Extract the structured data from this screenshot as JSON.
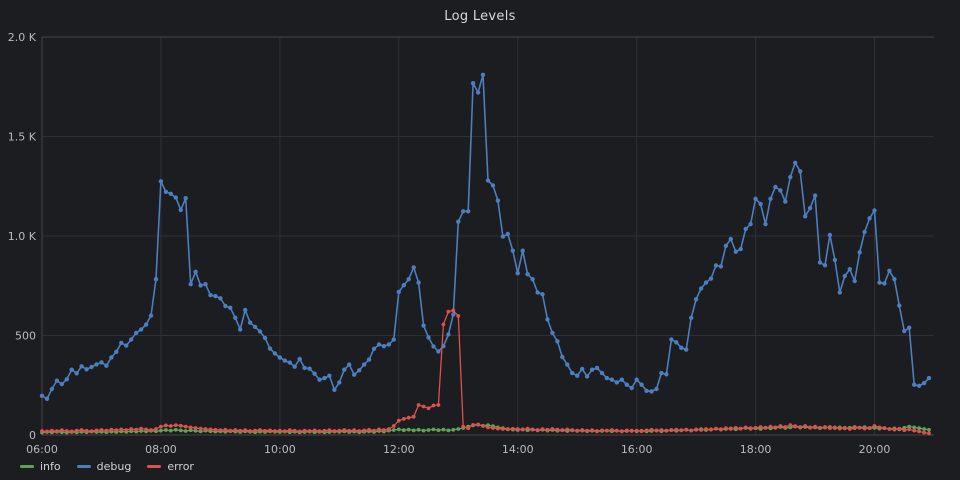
{
  "chart_data": {
    "type": "line",
    "title": "Log Levels",
    "xlabel": "",
    "ylabel": "",
    "x_start": "06:00",
    "x_end": "21:00",
    "x_interval_minutes": 5,
    "x_axis_total_intervals": 180,
    "x_tick_labels": [
      "06:00",
      "08:00",
      "10:00",
      "12:00",
      "14:00",
      "16:00",
      "18:00",
      "20:00"
    ],
    "x_tick_interval_hours": 2,
    "ylim": [
      0,
      2000
    ],
    "y_ticks": [
      {
        "value": 0,
        "label": "0"
      },
      {
        "value": 500,
        "label": "500"
      },
      {
        "value": 1000,
        "label": "1.0 K"
      },
      {
        "value": 1500,
        "label": "1.5 K"
      },
      {
        "value": 2000,
        "label": "2.0 K"
      }
    ],
    "grid": true,
    "legend_position": "bottom-left",
    "marker_style": "dots-with-line",
    "series": [
      {
        "name": "info",
        "color": "#61a356",
        "values": [
          12,
          15,
          13,
          16,
          14,
          12,
          15,
          13,
          16,
          14,
          17,
          15,
          16,
          14,
          17,
          15,
          18,
          16,
          19,
          17,
          20,
          18,
          21,
          19,
          22,
          25,
          22,
          26,
          23,
          20,
          24,
          21,
          18,
          22,
          19,
          17,
          18,
          16,
          19,
          17,
          15,
          18,
          16,
          14,
          17,
          15,
          18,
          16,
          15,
          17,
          14,
          16,
          13,
          15,
          17,
          14,
          16,
          13,
          15,
          17,
          16,
          18,
          15,
          17,
          14,
          16,
          18,
          15,
          20,
          17,
          22,
          25,
          28,
          24,
          27,
          23,
          26,
          22,
          25,
          28,
          24,
          27,
          23,
          26,
          30,
          35,
          42,
          48,
          52,
          46,
          50,
          44,
          38,
          34,
          30,
          27,
          25,
          28,
          24,
          27,
          23,
          26,
          22,
          25,
          21,
          24,
          20,
          23,
          20,
          22,
          19,
          21,
          18,
          20,
          22,
          19,
          21,
          18,
          20,
          22,
          19,
          21,
          18,
          20,
          23,
          19,
          22,
          25,
          21,
          24,
          27,
          23,
          26,
          29,
          25,
          28,
          31,
          27,
          30,
          33,
          29,
          32,
          35,
          31,
          34,
          30,
          37,
          33,
          36,
          40,
          35,
          38,
          42,
          37,
          40,
          36,
          38,
          34,
          37,
          40,
          35,
          38,
          33,
          36,
          40,
          36,
          39,
          34,
          36,
          32,
          35,
          30,
          33,
          28,
          36,
          42,
          38,
          34,
          30,
          26
        ]
      },
      {
        "name": "debug",
        "color": "#4d7ebf",
        "values": [
          197,
          182,
          231,
          273,
          256,
          280,
          328,
          310,
          345,
          330,
          342,
          355,
          365,
          348,
          390,
          418,
          463,
          449,
          480,
          513,
          530,
          555,
          600,
          783,
          1275,
          1222,
          1212,
          1193,
          1131,
          1190,
          758,
          820,
          752,
          758,
          703,
          698,
          687,
          648,
          639,
          589,
          530,
          628,
          565,
          543,
          520,
          488,
          434,
          410,
          389,
          374,
          364,
          343,
          382,
          337,
          333,
          308,
          278,
          286,
          298,
          227,
          264,
          328,
          354,
          303,
          325,
          354,
          379,
          433,
          455,
          446,
          455,
          480,
          719,
          753,
          783,
          842,
          766,
          550,
          490,
          445,
          420,
          446,
          505,
          606,
          1072,
          1124,
          1124,
          1768,
          1721,
          1810,
          1279,
          1254,
          1178,
          997,
          1010,
          926,
          813,
          926,
          808,
          783,
          716,
          707,
          581,
          513,
          471,
          392,
          354,
          311,
          298,
          332,
          294,
          328,
          337,
          311,
          286,
          278,
          264,
          278,
          253,
          236,
          278,
          253,
          222,
          219,
          231,
          311,
          305,
          480,
          466,
          438,
          429,
          589,
          682,
          736,
          766,
          786,
          852,
          847,
          951,
          985,
          921,
          934,
          1035,
          1060,
          1187,
          1161,
          1060,
          1187,
          1246,
          1229,
          1173,
          1296,
          1368,
          1325,
          1099,
          1140,
          1203,
          867,
          853,
          1005,
          880,
          716,
          799,
          833,
          774,
          918,
          1020,
          1089,
          1128,
          766,
          762,
          825,
          783,
          650,
          522,
          539,
          253,
          247,
          261,
          286
        ]
      },
      {
        "name": "error",
        "color": "#dc524e",
        "values": [
          20,
          18,
          22,
          19,
          24,
          20,
          18,
          22,
          25,
          21,
          19,
          23,
          25,
          22,
          27,
          24,
          28,
          25,
          30,
          27,
          32,
          28,
          25,
          30,
          42,
          48,
          45,
          50,
          46,
          42,
          38,
          35,
          32,
          30,
          28,
          26,
          24,
          26,
          22,
          25,
          21,
          24,
          20,
          22,
          25,
          21,
          23,
          20,
          22,
          19,
          24,
          21,
          18,
          22,
          20,
          23,
          19,
          21,
          24,
          20,
          22,
          25,
          21,
          24,
          20,
          23,
          26,
          22,
          28,
          25,
          30,
          45,
          72,
          81,
          87,
          92,
          151,
          143,
          134,
          148,
          151,
          556,
          620,
          626,
          598,
          42,
          34,
          51,
          53,
          45,
          38,
          35,
          32,
          30,
          28,
          31,
          30,
          27,
          32,
          28,
          25,
          29,
          26,
          30,
          27,
          24,
          28,
          25,
          22,
          25,
          21,
          24,
          20,
          23,
          21,
          25,
          22,
          19,
          23,
          20,
          22,
          19,
          23,
          26,
          22,
          25,
          21,
          24,
          27,
          23,
          26,
          22,
          28,
          25,
          30,
          27,
          32,
          29,
          34,
          30,
          36,
          32,
          38,
          34,
          36,
          40,
          35,
          42,
          38,
          45,
          40,
          50,
          44,
          40,
          45,
          38,
          42,
          36,
          40,
          34,
          38,
          32,
          36,
          30,
          34,
          37,
          32,
          35,
          45,
          38,
          34,
          30,
          27,
          32,
          24,
          28,
          22,
          18,
          12,
          8
        ]
      }
    ]
  },
  "colors": {
    "background": "#1c1d20",
    "grid": "#2d3035",
    "frame": "#43454a",
    "tick_text": "#b8bbc0",
    "title_text": "#d8d9da"
  }
}
